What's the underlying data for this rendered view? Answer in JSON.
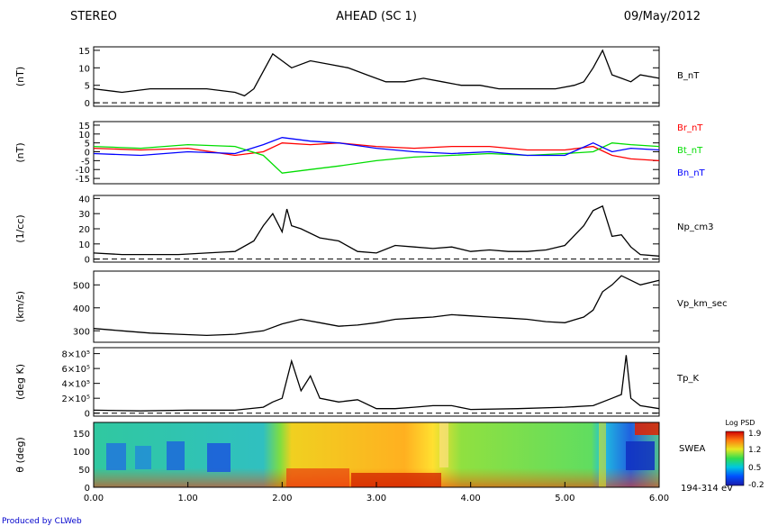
{
  "header": {
    "left": "STEREO",
    "center": "AHEAD (SC 1)",
    "right": "09/May/2012"
  },
  "footer": {
    "credit": "Produced by CLWeb"
  },
  "colorbar": {
    "title": "Log PSD",
    "ticks": [
      "1.9",
      "1.2",
      "0.5",
      "-0.2"
    ]
  },
  "chart_data": [
    {
      "type": "line",
      "ylabel": "(nT)",
      "ylim": [
        -1,
        16
      ],
      "yticks": [
        "15",
        "10",
        "5",
        "0"
      ],
      "series": [
        {
          "name": "B_nT",
          "color": "#000000",
          "x": [
            0.0,
            0.3,
            0.6,
            0.9,
            1.2,
            1.5,
            1.6,
            1.7,
            1.8,
            1.9,
            2.0,
            2.1,
            2.3,
            2.5,
            2.7,
            2.9,
            3.1,
            3.3,
            3.5,
            3.7,
            3.9,
            4.1,
            4.3,
            4.5,
            4.7,
            4.9,
            5.1,
            5.2,
            5.3,
            5.4,
            5.5,
            5.6,
            5.7,
            5.8,
            6.0
          ],
          "values": [
            4,
            3,
            4,
            4,
            4,
            3,
            2,
            4,
            9,
            14,
            12,
            10,
            12,
            11,
            10,
            8,
            6,
            6,
            7,
            6,
            5,
            5,
            4,
            4,
            4,
            4,
            5,
            6,
            10,
            15,
            8,
            7,
            6,
            8,
            7
          ]
        }
      ]
    },
    {
      "type": "line",
      "ylabel": "(nT)",
      "ylim": [
        -18,
        17
      ],
      "yticks": [
        "15",
        "10",
        "5",
        "0",
        "-5",
        "-10",
        "-15"
      ],
      "series": [
        {
          "name": "Br_nT",
          "color": "#ff0000",
          "x": [
            0.0,
            0.5,
            1.0,
            1.5,
            1.8,
            2.0,
            2.3,
            2.6,
            3.0,
            3.4,
            3.8,
            4.2,
            4.6,
            5.0,
            5.3,
            5.5,
            5.7,
            6.0
          ],
          "values": [
            2,
            1,
            2,
            -2,
            0,
            5,
            4,
            5,
            3,
            2,
            3,
            3,
            1,
            1,
            3,
            -2,
            -4,
            -5
          ]
        },
        {
          "name": "Bt_nT",
          "color": "#00dd00",
          "x": [
            0.0,
            0.5,
            1.0,
            1.5,
            1.8,
            2.0,
            2.3,
            2.6,
            3.0,
            3.4,
            3.8,
            4.2,
            4.6,
            5.0,
            5.3,
            5.5,
            5.7,
            6.0
          ],
          "values": [
            3,
            2,
            4,
            3,
            -2,
            -12,
            -10,
            -8,
            -5,
            -3,
            -2,
            -1,
            -2,
            -1,
            0,
            5,
            4,
            3
          ]
        },
        {
          "name": "Bn_nT",
          "color": "#0000ff",
          "x": [
            0.0,
            0.5,
            1.0,
            1.5,
            1.8,
            2.0,
            2.3,
            2.6,
            3.0,
            3.4,
            3.8,
            4.2,
            4.6,
            5.0,
            5.3,
            5.5,
            5.7,
            6.0
          ],
          "values": [
            -1,
            -2,
            0,
            -1,
            4,
            8,
            6,
            5,
            2,
            0,
            -1,
            0,
            -2,
            -2,
            5,
            0,
            2,
            1
          ]
        }
      ]
    },
    {
      "type": "line",
      "ylabel": "(1/cc)",
      "ylim": [
        -2,
        42
      ],
      "yticks": [
        "40",
        "30",
        "20",
        "10",
        "0"
      ],
      "series": [
        {
          "name": "Np_cm3",
          "color": "#000000",
          "x": [
            0.0,
            0.3,
            0.6,
            0.9,
            1.2,
            1.5,
            1.7,
            1.8,
            1.9,
            2.0,
            2.05,
            2.1,
            2.2,
            2.4,
            2.6,
            2.8,
            3.0,
            3.2,
            3.4,
            3.6,
            3.8,
            4.0,
            4.2,
            4.4,
            4.6,
            4.8,
            5.0,
            5.2,
            5.3,
            5.4,
            5.5,
            5.6,
            5.7,
            5.8,
            6.0
          ],
          "values": [
            4,
            3,
            3,
            3,
            4,
            5,
            12,
            22,
            30,
            18,
            33,
            22,
            20,
            14,
            12,
            5,
            4,
            9,
            8,
            7,
            8,
            5,
            6,
            5,
            5,
            6,
            9,
            22,
            32,
            35,
            15,
            16,
            8,
            3,
            2
          ]
        }
      ]
    },
    {
      "type": "line",
      "ylabel": "(km/s)",
      "ylim": [
        250,
        560
      ],
      "yticks": [
        "500",
        "400",
        "300"
      ],
      "series": [
        {
          "name": "Vp_km_sec",
          "color": "#000000",
          "x": [
            0.0,
            0.3,
            0.6,
            0.9,
            1.2,
            1.5,
            1.8,
            2.0,
            2.2,
            2.4,
            2.6,
            2.8,
            3.0,
            3.2,
            3.4,
            3.6,
            3.8,
            4.0,
            4.2,
            4.4,
            4.6,
            4.8,
            5.0,
            5.2,
            5.3,
            5.4,
            5.5,
            5.6,
            5.7,
            5.8,
            6.0
          ],
          "values": [
            310,
            300,
            290,
            285,
            280,
            285,
            300,
            330,
            350,
            335,
            320,
            325,
            335,
            350,
            355,
            360,
            370,
            365,
            360,
            355,
            350,
            340,
            335,
            360,
            390,
            470,
            500,
            540,
            520,
            500,
            520
          ]
        }
      ]
    },
    {
      "type": "line",
      "ylabel": "(deg K)",
      "ylim": [
        -40000,
        880000
      ],
      "yticks": [
        "8×10⁵",
        "6×10⁵",
        "4×10⁵",
        "2×10⁵",
        "0"
      ],
      "series": [
        {
          "name": "Tp_K",
          "color": "#000000",
          "x": [
            0.0,
            0.5,
            1.0,
            1.5,
            1.8,
            1.9,
            2.0,
            2.1,
            2.2,
            2.3,
            2.4,
            2.6,
            2.8,
            3.0,
            3.2,
            3.4,
            3.6,
            3.8,
            4.0,
            4.5,
            5.0,
            5.3,
            5.5,
            5.6,
            5.65,
            5.7,
            5.8,
            6.0
          ],
          "values": [
            40000,
            30000,
            40000,
            40000,
            80000,
            150000,
            200000,
            700000,
            300000,
            500000,
            200000,
            150000,
            180000,
            60000,
            60000,
            80000,
            100000,
            100000,
            50000,
            60000,
            80000,
            100000,
            200000,
            250000,
            780000,
            200000,
            100000,
            60000
          ]
        }
      ]
    },
    {
      "type": "heatmap",
      "ylabel": "θ (deg)",
      "ylim": [
        0,
        180
      ],
      "yticks": [
        "150",
        "100",
        "50",
        "0"
      ],
      "label": "SWEA",
      "energy_label": "194-314 eV"
    }
  ],
  "xaxis": {
    "ticks": [
      "0.00",
      "1.00",
      "2.00",
      "3.00",
      "4.00",
      "5.00",
      "6.00"
    ],
    "range": [
      0,
      6
    ]
  }
}
